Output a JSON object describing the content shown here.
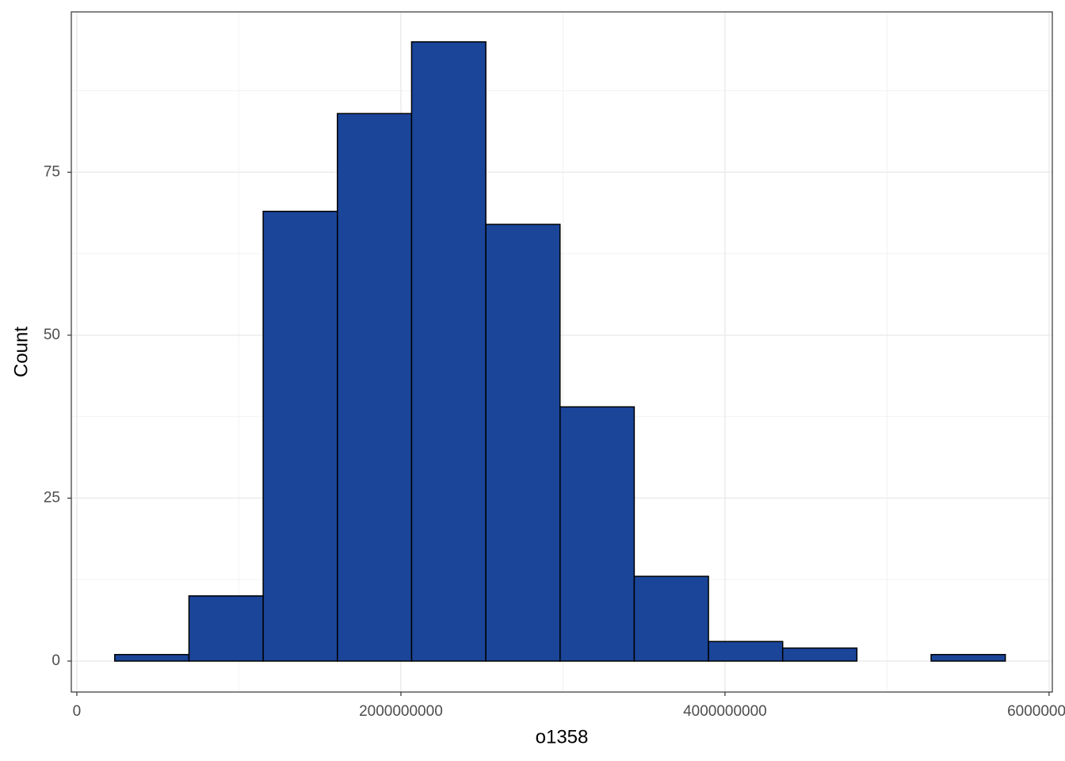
{
  "chart_data": {
    "type": "histogram",
    "x_label": "o1358",
    "y_label": "Count",
    "bins": [
      234000000,
      692000000,
      1150000000,
      1608000000,
      2066000000,
      2524000000,
      2982000000,
      3440000000,
      3898000000,
      4356000000,
      4814000000,
      5272000000,
      5730000000
    ],
    "counts": [
      1,
      10,
      69,
      84,
      95,
      67,
      39,
      13,
      3,
      2,
      0,
      1
    ],
    "color": "#1a4599",
    "xlim": [
      -34000000,
      6020000000
    ],
    "xticks": [
      0,
      2000000000,
      4000000000,
      6000000000
    ],
    "ylim": [
      -4.75,
      99.6
    ],
    "yticks": [
      0,
      25,
      50,
      75
    ],
    "grid": true
  }
}
